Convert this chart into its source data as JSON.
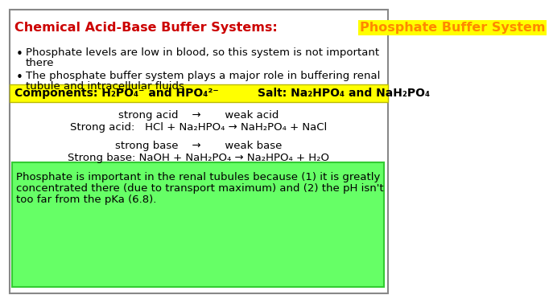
{
  "bg_color": "#ffffff",
  "border_color": "#888888",
  "title_part1": "Chemical Acid-Base Buffer Systems: ",
  "title_part2": "Phosphate Buffer System",
  "title_color1": "#cc0000",
  "title_color2": "#ff8800",
  "title_highlight": "#ffff00",
  "title_fontsize": 11.5,
  "bullet1_line1": "Phosphate levels are low in blood, so this system is not important",
  "bullet1_line2": "there",
  "bullet2_line1": "The phosphate buffer system plays a major role in buffering renal",
  "bullet2_line2": "tubule and intracellular fluids",
  "bullet_fontsize": 9.5,
  "components_bg": "#ffff00",
  "components_left": "Components: H₂PO₄⁻ and HPO₄²⁻",
  "components_right": "Salt: Na₂HPO₄ and NaH₂PO₄",
  "components_fontsize": 10,
  "acid_line1": "strong acid    →       weak acid",
  "acid_line2": "Strong acid:   HCl + Na₂HPO₄ → NaH₂PO₄ + NaCl",
  "base_line1": "strong base    →       weak base",
  "base_line2": "Strong base: NaOH + NaH₂PO₄ → Na₂HPO₄ + H₂O",
  "reaction_fontsize": 9.5,
  "note_bg": "#66ff66",
  "note_border": "#33cc33",
  "note_line1": "Phosphate is important in the renal tubules because (1) it is greatly",
  "note_line2": "concentrated there (due to transport maximum) and (2) the pH isn't",
  "note_line3": "too far from the pKa (6.8).",
  "note_fontsize": 9.5
}
